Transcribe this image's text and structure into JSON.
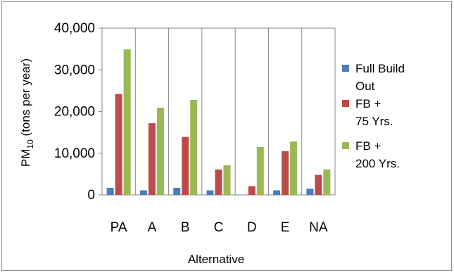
{
  "chart_data": {
    "type": "bar",
    "categories": [
      "PA",
      "A",
      "B",
      "C",
      "D",
      "E",
      "NA"
    ],
    "series": [
      {
        "name": "Full Build Out",
        "color": "#4a7ebb",
        "values": [
          1700,
          1100,
          1700,
          1100,
          0,
          1100,
          1500
        ]
      },
      {
        "name": "FB + 75 Yrs.",
        "color": "#be4b48",
        "values": [
          24200,
          17200,
          13900,
          6100,
          2100,
          10500,
          4800
        ]
      },
      {
        "name": "FB + 200 Yrs.",
        "color": "#98b954",
        "values": [
          34900,
          20900,
          22800,
          7100,
          11500,
          12800,
          6100
        ]
      }
    ],
    "legend": [
      {
        "lines": [
          "Full Build",
          "Out"
        ],
        "color": "#4a7ebb"
      },
      {
        "lines": [
          "FB +",
          "75 Yrs."
        ],
        "color": "#be4b48"
      },
      {
        "lines": [
          "FB +",
          "200 Yrs."
        ],
        "color": "#98b954"
      }
    ],
    "yticks": [
      "0",
      "10,000",
      "20,000",
      "30,000",
      "40,000"
    ],
    "ylim": [
      0,
      40000
    ],
    "xlabel": "Alternative",
    "ylabel": {
      "prefix": "PM",
      "sub": "10",
      "suffix": " (tons per year)"
    },
    "grid": "vertical lines between categories",
    "legend_position": "right"
  }
}
